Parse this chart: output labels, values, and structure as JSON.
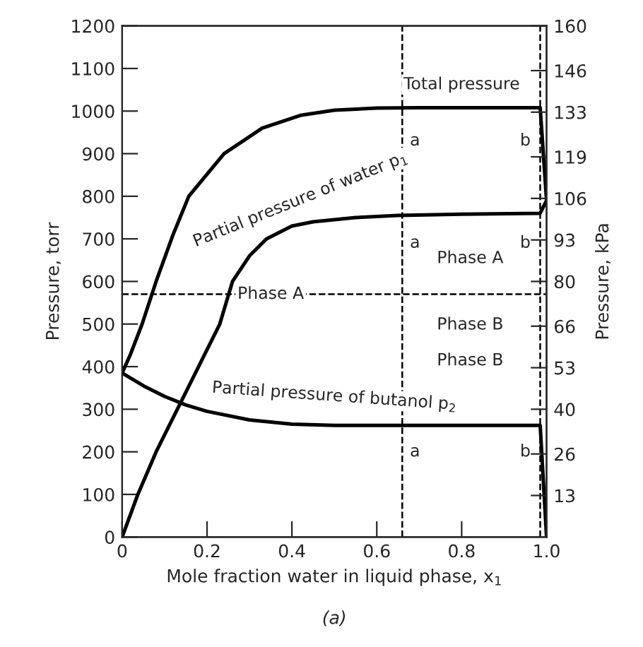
{
  "chart_data": {
    "type": "line",
    "xlabel": "Mole fraction water in liquid phase, x$_{1}$",
    "ylabel": "Pressure, torr",
    "y2label": "Pressure, kPa",
    "series": [
      {
        "color": "#000000",
        "x": [
          0,
          0.02,
          0.047,
          0.08,
          0.12,
          0.157,
          0.24,
          0.33,
          0.42,
          0.5,
          0.6,
          0.7,
          0.8,
          0.9,
          0.985,
          1.0
        ],
        "values": [
          385,
          430,
          500,
          600,
          710,
          800,
          900,
          960,
          990,
          1002,
          1007,
          1008,
          1008,
          1008,
          1008,
          790
        ]
      },
      {
        "color": "#000000",
        "x": [
          0,
          0.037,
          0.08,
          0.13,
          0.18,
          0.23,
          0.26,
          0.3,
          0.34,
          0.4,
          0.45,
          0.55,
          0.65,
          0.8,
          0.985,
          1.0
        ],
        "values": [
          0,
          100,
          200,
          300,
          400,
          500,
          600,
          660,
          700,
          730,
          740,
          750,
          755,
          758,
          760,
          790
        ]
      },
      {
        "color": "#000000",
        "x": [
          0,
          0.05,
          0.1,
          0.15,
          0.2,
          0.3,
          0.4,
          0.5,
          0.65,
          0.8,
          0.985,
          1.0
        ],
        "values": [
          385,
          355,
          330,
          310,
          295,
          275,
          265,
          262,
          262,
          262,
          262,
          0
        ]
      }
    ],
    "xlim": [
      0,
      1.0
    ],
    "xticks": [
      0,
      0.2,
      0.4,
      0.6,
      0.8,
      {
        "value": 1.0,
        "label": "1.0"
      }
    ],
    "ylim": [
      0,
      1200
    ],
    "yticks": [
      0,
      100,
      200,
      300,
      400,
      500,
      600,
      700,
      800,
      900,
      1000,
      1100,
      1200
    ],
    "y2lim": [
      0,
      160
    ],
    "y2ticks": [
      13,
      26,
      40,
      53,
      66,
      80,
      93,
      106,
      119,
      133,
      146,
      160
    ],
    "ref_lines": [
      {
        "axis": "x",
        "value": 0.66,
        "line_style": "dashed",
        "color": "#000000"
      },
      {
        "axis": "x",
        "value": 0.985,
        "line_style": "dashed",
        "color": "#000000"
      },
      {
        "axis": "y",
        "value": 570,
        "line_style": "dashed",
        "color": "#000000"
      }
    ],
    "annotations": [
      "Total pressure",
      "Partial pressure of water p$_{1}$",
      "Partial pressure of butanol p$_{2}$",
      {
        "text": "Phase A",
        "x": 0.35,
        "y": 570
      },
      "Phase A",
      "Phase B",
      "Phase B",
      {
        "text": "a",
        "x": 0.69,
        "y": 930
      },
      {
        "text": "a",
        "x": 0.69,
        "y": 690
      },
      {
        "text": "a",
        "x": 0.69,
        "y": 200
      },
      {
        "text": "b",
        "x": 0.95,
        "y": 930
      },
      {
        "text": "b",
        "x": 0.95,
        "y": 690
      },
      {
        "text": "b",
        "x": 0.95,
        "y": 200
      },
      "(a)"
    ],
    "grid": false,
    "legend": false,
    "marker": "none",
    "line_style": "solid"
  }
}
